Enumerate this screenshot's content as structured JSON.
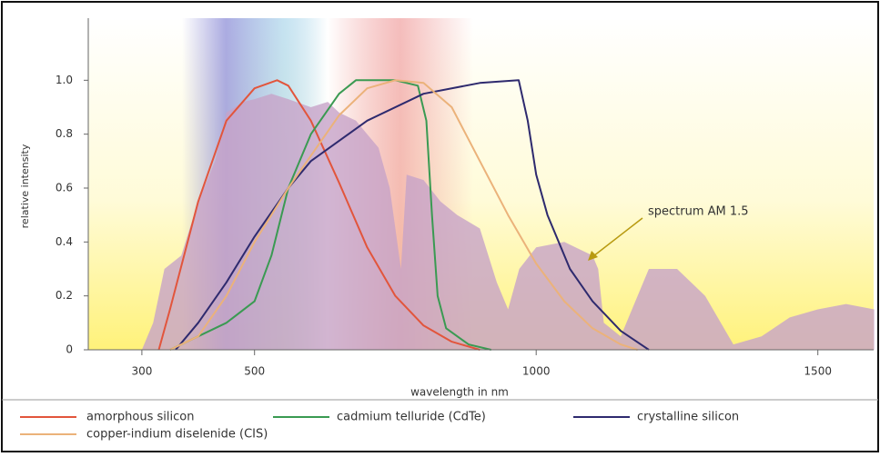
{
  "chart_data": {
    "type": "line",
    "x_label": "wavelength in nm",
    "y_label": "relative intensity",
    "annotation": "spectrum AM 1.5",
    "xlim": [
      200,
      1600
    ],
    "ylim": [
      0,
      1.2
    ],
    "xticks": [
      300,
      500,
      1000,
      1500
    ],
    "yticks": [
      0,
      0.2,
      0.4,
      0.6,
      0.8,
      {
        "value": 1,
        "label": "1.0"
      }
    ],
    "spectrum": {
      "color": "#c7a3c8",
      "x": [
        300,
        320,
        340,
        370,
        400,
        430,
        450,
        480,
        500,
        530,
        560,
        600,
        630,
        650,
        680,
        700,
        720,
        740,
        760,
        770,
        800,
        830,
        860,
        900,
        930,
        950,
        970,
        1000,
        1050,
        1100,
        1110,
        1120,
        1150,
        1200,
        1250,
        1300,
        1350,
        1400,
        1450,
        1500,
        1550,
        1600
      ],
      "values": [
        0,
        0.1,
        0.3,
        0.35,
        0.55,
        0.7,
        0.88,
        0.92,
        0.93,
        0.95,
        0.93,
        0.9,
        0.92,
        0.88,
        0.85,
        0.8,
        0.75,
        0.6,
        0.3,
        0.65,
        0.63,
        0.55,
        0.5,
        0.45,
        0.25,
        0.15,
        0.3,
        0.38,
        0.4,
        0.35,
        0.3,
        0.1,
        0.05,
        0.3,
        0.3,
        0.2,
        0.02,
        0.05,
        0.12,
        0.15,
        0.17,
        0.15
      ]
    },
    "series": [
      {
        "name": "amorphous silicon",
        "color": "#e2553c",
        "x": [
          330,
          350,
          400,
          450,
          500,
          540,
          560,
          600,
          650,
          700,
          750,
          800,
          850,
          900
        ],
        "values": [
          0,
          0.15,
          0.55,
          0.85,
          0.97,
          1.0,
          0.98,
          0.85,
          0.62,
          0.38,
          0.2,
          0.09,
          0.03,
          0
        ]
      },
      {
        "name": "cadmium telluride (CdTe)",
        "color": "#3a9a52",
        "x": [
          350,
          400,
          450,
          500,
          530,
          560,
          600,
          650,
          680,
          750,
          790,
          805,
          815,
          825,
          840,
          880,
          920
        ],
        "values": [
          0,
          0.05,
          0.1,
          0.18,
          0.35,
          0.6,
          0.8,
          0.95,
          1.0,
          1.0,
          0.98,
          0.85,
          0.5,
          0.2,
          0.08,
          0.02,
          0
        ]
      },
      {
        "name": "crystalline silicon",
        "color": "#2e2a6e",
        "x": [
          360,
          400,
          450,
          500,
          560,
          600,
          700,
          800,
          900,
          969,
          985,
          1000,
          1020,
          1060,
          1100,
          1150,
          1200
        ],
        "values": [
          0,
          0.1,
          0.25,
          0.42,
          0.6,
          0.7,
          0.85,
          0.95,
          0.99,
          1.0,
          0.85,
          0.65,
          0.5,
          0.3,
          0.18,
          0.07,
          0
        ]
      },
      {
        "name": "copper-indium diselenide (CIS)",
        "color": "#ebb27a",
        "x": [
          350,
          400,
          450,
          500,
          560,
          600,
          650,
          700,
          750,
          800,
          850,
          900,
          950,
          1000,
          1050,
          1100,
          1150,
          1180
        ],
        "values": [
          0,
          0.05,
          0.2,
          0.4,
          0.6,
          0.72,
          0.87,
          0.97,
          1.0,
          0.99,
          0.9,
          0.7,
          0.5,
          0.32,
          0.18,
          0.08,
          0.02,
          0
        ]
      }
    ]
  }
}
